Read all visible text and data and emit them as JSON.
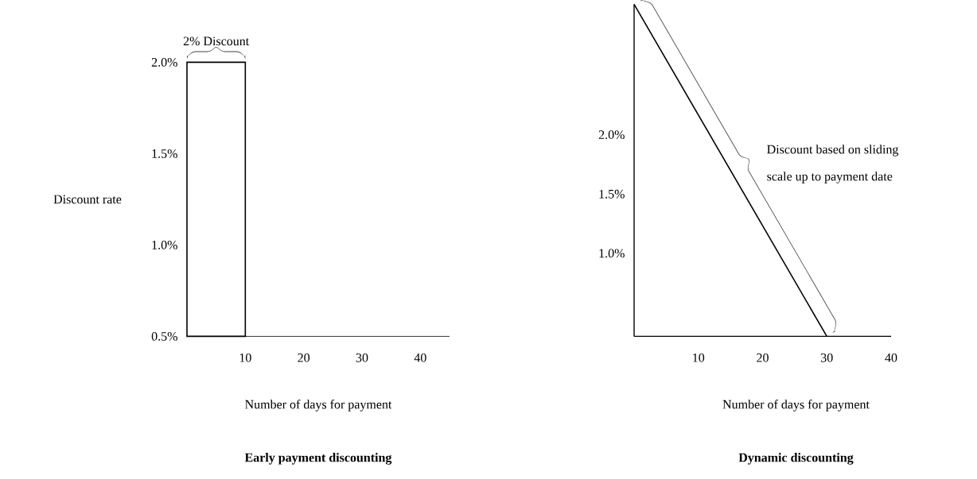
{
  "chart_data": [
    {
      "type": "histogram",
      "title": "Early payment discounting",
      "xlabel": "Number of days for payment",
      "ylabel": "Discount rate",
      "bins": [
        0,
        10
      ],
      "values": [
        2.0
      ],
      "color": "#000000",
      "xlim": [
        0,
        45
      ],
      "xticks": [
        10,
        20,
        30,
        40
      ],
      "ylim": [
        0.5,
        2.0
      ],
      "yticks": [
        {
          "value": 0.5,
          "label": "0.5%"
        },
        {
          "value": 1.0,
          "label": "1.0%"
        },
        {
          "value": 1.5,
          "label": "1.5%"
        },
        {
          "value": 2.0,
          "label": "2.0%"
        }
      ],
      "annotations": [
        {
          "text": "2% Discount",
          "x": 5,
          "y": 2.0
        }
      ]
    },
    {
      "type": "line",
      "title": "Dynamic discounting",
      "xlabel": "Number of days for payment",
      "x": [
        0,
        30
      ],
      "values": [
        3.1,
        0.3
      ],
      "color": "#000000",
      "xlim": [
        0,
        40
      ],
      "xticks": [
        10,
        20,
        30,
        40
      ],
      "ylim": [
        0.3,
        3.1
      ],
      "yticks": [
        {
          "value": 1.0,
          "label": "1.0%"
        },
        {
          "value": 1.5,
          "label": "1.5%"
        },
        {
          "value": 2.0,
          "label": "2.0%"
        }
      ],
      "annotations": [
        "Discount based on sliding scale up to payment date"
      ]
    }
  ]
}
